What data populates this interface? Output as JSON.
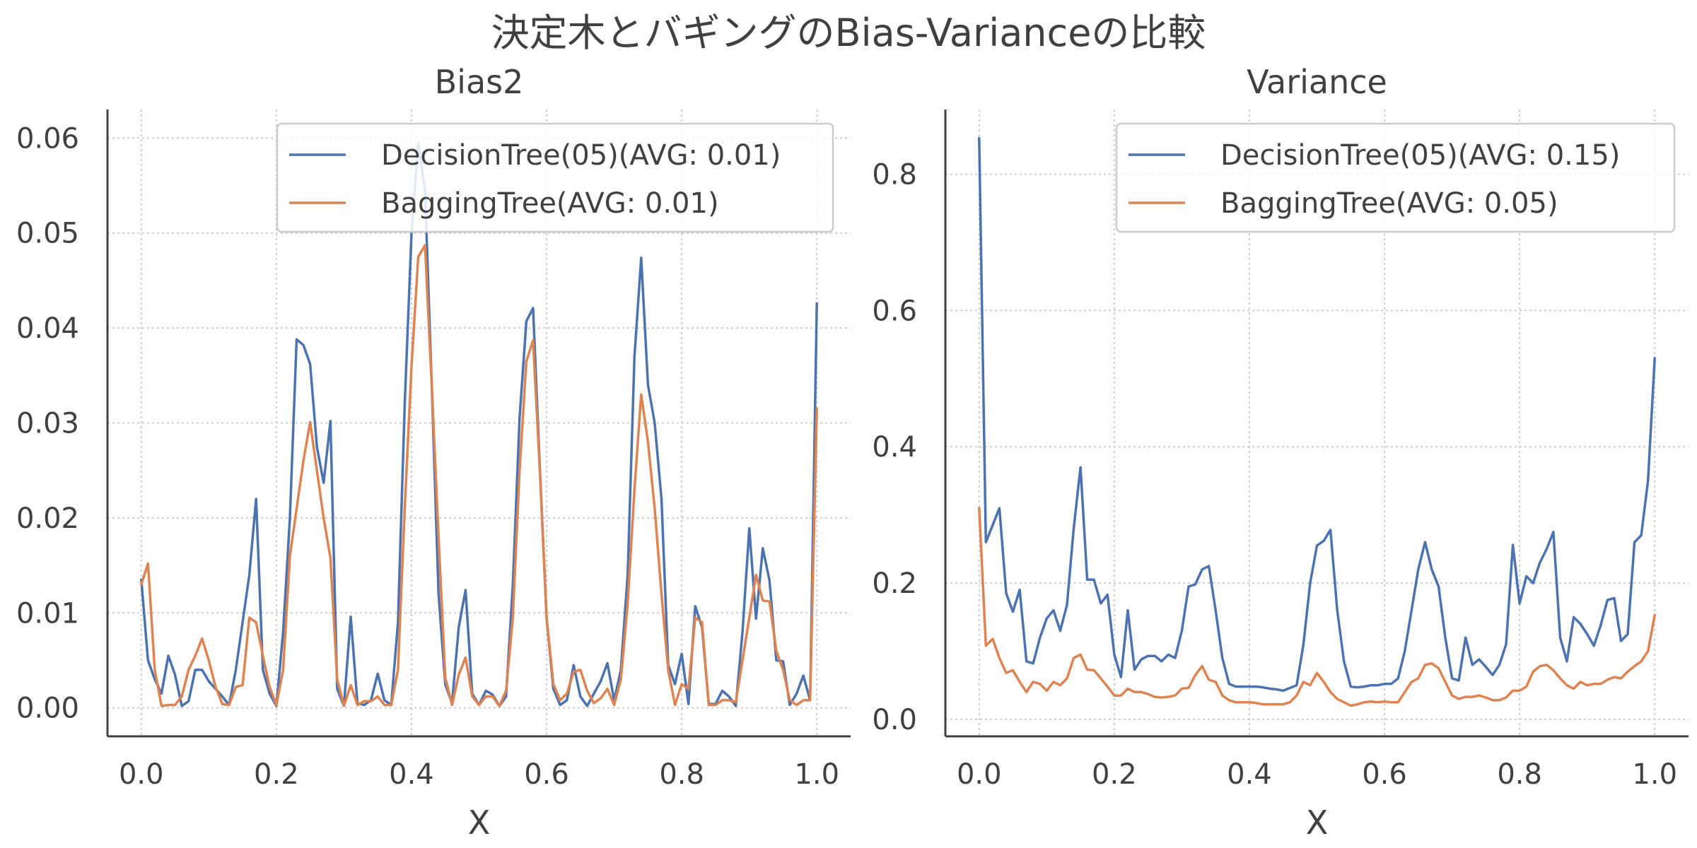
{
  "figure": {
    "title": "決定木とバギングのBias-Varianceの比較"
  },
  "colors": {
    "series_0": "#4c72b0",
    "series_1": "#dd8452",
    "axis": "#404040",
    "grid": "#cccccc"
  },
  "chart_data": [
    {
      "type": "line",
      "title": "Bias2",
      "xlabel": "X",
      "ylabel": "",
      "xlim": [
        -0.05,
        1.05
      ],
      "ylim": [
        -0.003,
        0.063
      ],
      "xticks": [
        0.0,
        0.2,
        0.4,
        0.6,
        0.8,
        1.0
      ],
      "xtick_labels": [
        "0.0",
        "0.2",
        "0.4",
        "0.6",
        "0.8",
        "1.0"
      ],
      "yticks": [
        0.0,
        0.01,
        0.02,
        0.03,
        0.04,
        0.05,
        0.06
      ],
      "ytick_labels": [
        "0.00",
        "0.01",
        "0.02",
        "0.03",
        "0.04",
        "0.05",
        "0.06"
      ],
      "grid": true,
      "legend_position": "top-right",
      "x": [
        0.0,
        0.01,
        0.02,
        0.03,
        0.04,
        0.05,
        0.06,
        0.07,
        0.08,
        0.09,
        0.1,
        0.11,
        0.12,
        0.13,
        0.14,
        0.15,
        0.16,
        0.17,
        0.18,
        0.19,
        0.2,
        0.21,
        0.22,
        0.23,
        0.24,
        0.25,
        0.26,
        0.27,
        0.28,
        0.29,
        0.3,
        0.31,
        0.32,
        0.33,
        0.34,
        0.35,
        0.36,
        0.37,
        0.38,
        0.39,
        0.4,
        0.41,
        0.42,
        0.43,
        0.44,
        0.45,
        0.46,
        0.47,
        0.48,
        0.49,
        0.5,
        0.51,
        0.52,
        0.53,
        0.54,
        0.55,
        0.56,
        0.57,
        0.58,
        0.59,
        0.6,
        0.61,
        0.62,
        0.63,
        0.64,
        0.65,
        0.66,
        0.67,
        0.68,
        0.69,
        0.7,
        0.71,
        0.72,
        0.73,
        0.74,
        0.75,
        0.76,
        0.77,
        0.78,
        0.79,
        0.8,
        0.81,
        0.82,
        0.83,
        0.84,
        0.85,
        0.86,
        0.87,
        0.88,
        0.89,
        0.9,
        0.91,
        0.92,
        0.93,
        0.94,
        0.95,
        0.96,
        0.97,
        0.98,
        0.99,
        1.0
      ],
      "series": [
        {
          "name": "DecisionTree(05)(AVG: 0.01)",
          "values": [
            0.0135,
            0.005,
            0.003,
            0.0015,
            0.0055,
            0.0035,
            0.0002,
            0.0007,
            0.004,
            0.004,
            0.0028,
            0.002,
            0.0012,
            0.0003,
            0.004,
            0.009,
            0.014,
            0.022,
            0.004,
            0.0015,
            0.0002,
            0.008,
            0.02,
            0.0388,
            0.0382,
            0.0362,
            0.0275,
            0.0237,
            0.0302,
            0.002,
            0.0002,
            0.0096,
            0.0005,
            0.0003,
            0.0008,
            0.0036,
            0.0008,
            0.0003,
            0.009,
            0.032,
            0.05,
            0.0595,
            0.0545,
            0.034,
            0.012,
            0.0025,
            0.0005,
            0.0085,
            0.0124,
            0.0015,
            0.0003,
            0.0018,
            0.0014,
            0.0002,
            0.0012,
            0.013,
            0.0305,
            0.0407,
            0.0421,
            0.0252,
            0.0095,
            0.002,
            0.0003,
            0.0008,
            0.0045,
            0.0012,
            0.0002,
            0.0015,
            0.0028,
            0.0047,
            0.0008,
            0.004,
            0.014,
            0.037,
            0.0474,
            0.034,
            0.03,
            0.022,
            0.0045,
            0.0025,
            0.0057,
            0.0004,
            0.0107,
            0.0085,
            0.0004,
            0.0004,
            0.0018,
            0.0012,
            0.0002,
            0.008,
            0.0189,
            0.0094,
            0.0168,
            0.0134,
            0.005,
            0.0049,
            0.0003,
            0.0015,
            0.0034,
            0.0008,
            0.0426
          ]
        },
        {
          "name": "BaggingTree(AVG: 0.01)",
          "values": [
            0.013,
            0.0152,
            0.004,
            0.0002,
            0.0003,
            0.0003,
            0.0012,
            0.004,
            0.0055,
            0.0073,
            0.005,
            0.0022,
            0.0004,
            0.0003,
            0.0022,
            0.0024,
            0.0095,
            0.009,
            0.0055,
            0.0022,
            0.0003,
            0.004,
            0.016,
            0.021,
            0.026,
            0.0301,
            0.025,
            0.02,
            0.0158,
            0.003,
            0.0002,
            0.0024,
            0.0003,
            0.0007,
            0.0007,
            0.0012,
            0.0003,
            0.0003,
            0.004,
            0.021,
            0.036,
            0.0475,
            0.0487,
            0.034,
            0.018,
            0.0032,
            0.0003,
            0.0035,
            0.0053,
            0.0012,
            0.0003,
            0.0012,
            0.0012,
            0.0002,
            0.0018,
            0.0095,
            0.025,
            0.0365,
            0.0387,
            0.025,
            0.0095,
            0.0025,
            0.0008,
            0.0015,
            0.0038,
            0.004,
            0.0018,
            0.0005,
            0.001,
            0.002,
            0.0003,
            0.003,
            0.011,
            0.023,
            0.033,
            0.028,
            0.021,
            0.012,
            0.004,
            0.0003,
            0.0025,
            0.002,
            0.0095,
            0.009,
            0.0003,
            0.0003,
            0.0008,
            0.0008,
            0.0006,
            0.005,
            0.0095,
            0.014,
            0.0113,
            0.0112,
            0.006,
            0.004,
            0.0008,
            0.0003,
            0.0008,
            0.0008,
            0.0315
          ]
        }
      ]
    },
    {
      "type": "line",
      "title": "Variance",
      "xlabel": "X",
      "ylabel": "",
      "xlim": [
        -0.05,
        1.05
      ],
      "ylim": [
        -0.025,
        0.895
      ],
      "xticks": [
        0.0,
        0.2,
        0.4,
        0.6,
        0.8,
        1.0
      ],
      "xtick_labels": [
        "0.0",
        "0.2",
        "0.4",
        "0.6",
        "0.8",
        "1.0"
      ],
      "yticks": [
        0.0,
        0.2,
        0.4,
        0.6,
        0.8
      ],
      "ytick_labels": [
        "0.0",
        "0.2",
        "0.4",
        "0.6",
        "0.8"
      ],
      "grid": true,
      "legend_position": "top-right",
      "x": [
        0.0,
        0.01,
        0.02,
        0.03,
        0.04,
        0.05,
        0.06,
        0.07,
        0.08,
        0.09,
        0.1,
        0.11,
        0.12,
        0.13,
        0.14,
        0.15,
        0.16,
        0.17,
        0.18,
        0.19,
        0.2,
        0.21,
        0.22,
        0.23,
        0.24,
        0.25,
        0.26,
        0.27,
        0.28,
        0.29,
        0.3,
        0.31,
        0.32,
        0.33,
        0.34,
        0.35,
        0.36,
        0.37,
        0.38,
        0.39,
        0.4,
        0.41,
        0.42,
        0.43,
        0.44,
        0.45,
        0.46,
        0.47,
        0.48,
        0.49,
        0.5,
        0.51,
        0.52,
        0.53,
        0.54,
        0.55,
        0.56,
        0.57,
        0.58,
        0.59,
        0.6,
        0.61,
        0.62,
        0.63,
        0.64,
        0.65,
        0.66,
        0.67,
        0.68,
        0.69,
        0.7,
        0.71,
        0.72,
        0.73,
        0.74,
        0.75,
        0.76,
        0.77,
        0.78,
        0.79,
        0.8,
        0.81,
        0.82,
        0.83,
        0.84,
        0.85,
        0.86,
        0.87,
        0.88,
        0.89,
        0.9,
        0.91,
        0.92,
        0.93,
        0.94,
        0.95,
        0.96,
        0.97,
        0.98,
        0.99,
        1.0
      ],
      "series": [
        {
          "name": "DecisionTree(05)(AVG: 0.15)",
          "values": [
            0.853,
            0.26,
            0.285,
            0.31,
            0.185,
            0.158,
            0.19,
            0.085,
            0.082,
            0.12,
            0.148,
            0.16,
            0.13,
            0.168,
            0.28,
            0.37,
            0.205,
            0.205,
            0.17,
            0.183,
            0.095,
            0.062,
            0.16,
            0.073,
            0.088,
            0.093,
            0.093,
            0.085,
            0.095,
            0.09,
            0.13,
            0.195,
            0.198,
            0.22,
            0.225,
            0.16,
            0.09,
            0.052,
            0.048,
            0.048,
            0.048,
            0.048,
            0.047,
            0.045,
            0.044,
            0.042,
            0.046,
            0.05,
            0.11,
            0.2,
            0.255,
            0.262,
            0.278,
            0.16,
            0.085,
            0.048,
            0.047,
            0.048,
            0.05,
            0.05,
            0.052,
            0.052,
            0.06,
            0.1,
            0.16,
            0.22,
            0.26,
            0.22,
            0.195,
            0.12,
            0.06,
            0.057,
            0.12,
            0.08,
            0.088,
            0.077,
            0.065,
            0.08,
            0.11,
            0.256,
            0.17,
            0.21,
            0.2,
            0.23,
            0.25,
            0.275,
            0.12,
            0.085,
            0.15,
            0.14,
            0.125,
            0.108,
            0.138,
            0.175,
            0.178,
            0.115,
            0.125,
            0.26,
            0.27,
            0.35,
            0.53
          ]
        },
        {
          "name": "BaggingTree(AVG: 0.05)",
          "values": [
            0.31,
            0.108,
            0.118,
            0.09,
            0.068,
            0.072,
            0.055,
            0.04,
            0.055,
            0.052,
            0.042,
            0.055,
            0.05,
            0.06,
            0.09,
            0.095,
            0.073,
            0.072,
            0.06,
            0.048,
            0.035,
            0.035,
            0.045,
            0.04,
            0.04,
            0.037,
            0.033,
            0.032,
            0.033,
            0.035,
            0.045,
            0.046,
            0.065,
            0.078,
            0.058,
            0.055,
            0.035,
            0.028,
            0.025,
            0.025,
            0.025,
            0.024,
            0.022,
            0.022,
            0.022,
            0.022,
            0.025,
            0.035,
            0.055,
            0.05,
            0.068,
            0.055,
            0.04,
            0.03,
            0.025,
            0.02,
            0.022,
            0.025,
            0.026,
            0.025,
            0.026,
            0.025,
            0.025,
            0.04,
            0.055,
            0.06,
            0.08,
            0.082,
            0.075,
            0.055,
            0.035,
            0.03,
            0.033,
            0.033,
            0.035,
            0.032,
            0.028,
            0.028,
            0.032,
            0.042,
            0.042,
            0.048,
            0.07,
            0.078,
            0.08,
            0.072,
            0.06,
            0.05,
            0.045,
            0.055,
            0.05,
            0.052,
            0.052,
            0.058,
            0.062,
            0.06,
            0.07,
            0.078,
            0.085,
            0.1,
            0.153
          ]
        }
      ]
    }
  ]
}
